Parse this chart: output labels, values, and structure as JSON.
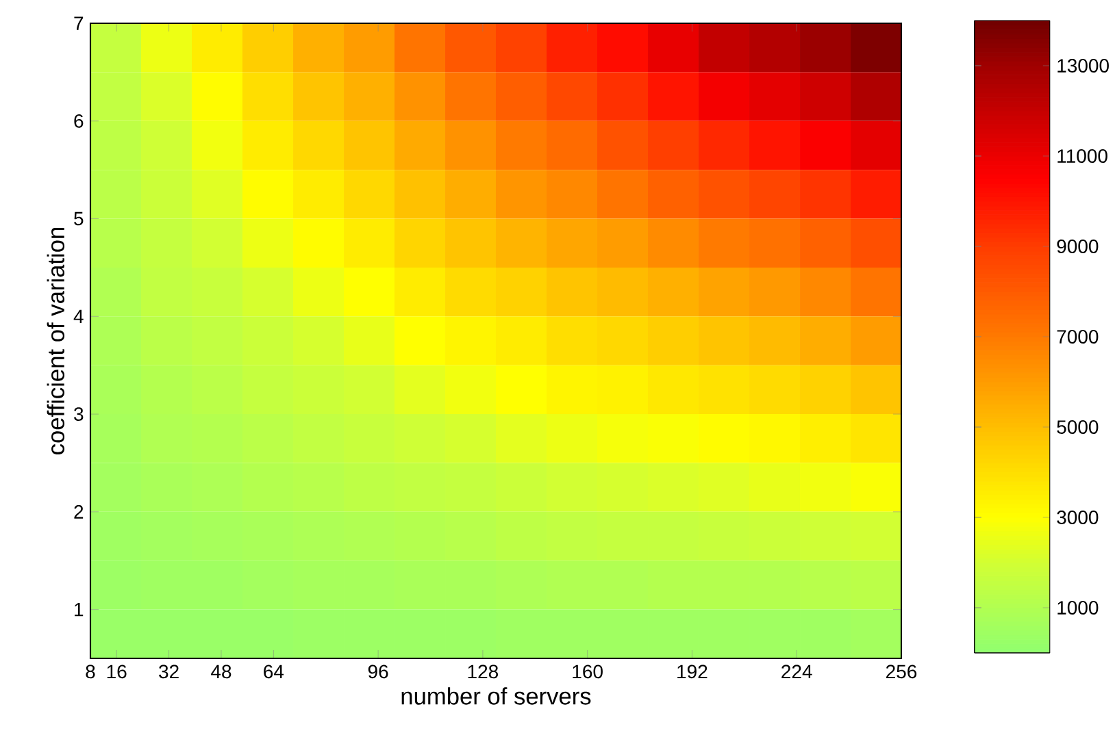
{
  "chart_data": {
    "type": "heatmap",
    "xlabel": "number of servers",
    "ylabel": "coefficient of variation",
    "x": [
      15.75,
      31.25,
      46.75,
      62.25,
      77.75,
      93.25,
      108.75,
      124.25,
      139.75,
      155.25,
      170.75,
      186.25,
      201.75,
      217.25,
      232.75,
      248.25
    ],
    "y": [
      6.75,
      6.25,
      5.75,
      5.25,
      4.75,
      4.25,
      3.75,
      3.25,
      2.75,
      2.25,
      1.75,
      1.25,
      0.75
    ],
    "cells": [
      [
        1600,
        2600,
        3600,
        4500,
        5400,
        6000,
        7200,
        8100,
        8800,
        9700,
        10200,
        11100,
        12100,
        12500,
        13100,
        13700
      ],
      [
        1500,
        2200,
        3100,
        4000,
        4800,
        5400,
        6300,
        7200,
        7900,
        8600,
        9300,
        10000,
        10800,
        11200,
        11800,
        12600
      ],
      [
        1400,
        1900,
        2700,
        3600,
        4200,
        4800,
        5600,
        6300,
        7000,
        7500,
        8300,
        8900,
        9500,
        10000,
        10600,
        11200
      ],
      [
        1300,
        1800,
        2300,
        3100,
        3600,
        4200,
        4900,
        5500,
        6200,
        6600,
        7200,
        7800,
        8300,
        8700,
        9200,
        9800
      ],
      [
        1200,
        1600,
        2000,
        2600,
        3100,
        3600,
        4300,
        4800,
        5300,
        5700,
        6000,
        6500,
        7000,
        7300,
        7800,
        8400
      ],
      [
        1000,
        1500,
        1700,
        2100,
        2600,
        3000,
        3600,
        4100,
        4400,
        4800,
        5100,
        5400,
        5800,
        6100,
        6600,
        7200
      ],
      [
        900,
        1300,
        1500,
        1800,
        2100,
        2500,
        3000,
        3300,
        3600,
        4000,
        4200,
        4500,
        4800,
        5100,
        5500,
        6000
      ],
      [
        800,
        1100,
        1300,
        1600,
        1800,
        2000,
        2400,
        2700,
        3000,
        3300,
        3400,
        3700,
        3900,
        4100,
        4400,
        4800
      ],
      [
        700,
        1000,
        1100,
        1300,
        1500,
        1700,
        1900,
        2100,
        2400,
        2600,
        2800,
        2900,
        3100,
        3200,
        3500,
        3800
      ],
      [
        600,
        800,
        900,
        1100,
        1200,
        1400,
        1500,
        1600,
        1800,
        2000,
        2100,
        2200,
        2300,
        2500,
        2700,
        2900
      ],
      [
        500,
        600,
        700,
        800,
        900,
        1000,
        1100,
        1200,
        1400,
        1500,
        1600,
        1600,
        1700,
        1800,
        1900,
        2000
      ],
      [
        400,
        500,
        500,
        600,
        700,
        700,
        800,
        800,
        900,
        1000,
        1000,
        1100,
        1100,
        1100,
        1200,
        1300
      ],
      [
        300,
        300,
        300,
        300,
        400,
        400,
        400,
        400,
        500,
        500,
        500,
        500,
        500,
        500,
        500,
        600
      ]
    ],
    "xlim": [
      8,
      256
    ],
    "ylim": [
      0.5,
      7
    ],
    "xticks": [
      8,
      16,
      32,
      48,
      64,
      96,
      128,
      160,
      192,
      224,
      256
    ],
    "yticks": [
      1,
      2,
      3,
      4,
      5,
      6,
      7
    ],
    "clim": [
      0,
      14000
    ],
    "cticks": [
      1000,
      3000,
      5000,
      7000,
      9000,
      11000,
      13000
    ]
  }
}
